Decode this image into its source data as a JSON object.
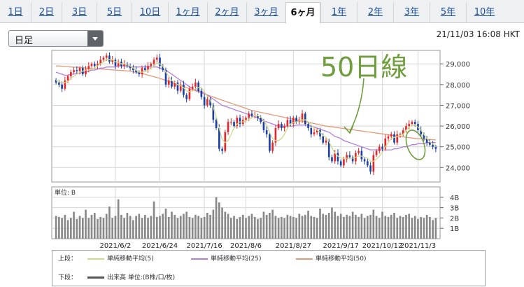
{
  "tabs": [
    {
      "label": "1日",
      "active": false
    },
    {
      "label": "2日",
      "active": false
    },
    {
      "label": "3日",
      "active": false
    },
    {
      "label": "5日",
      "active": false
    },
    {
      "label": "10日",
      "active": false
    },
    {
      "label": "1ヶ月",
      "active": false
    },
    {
      "label": "2ヶ月",
      "active": false
    },
    {
      "label": "3ヶ月",
      "active": false
    },
    {
      "label": "6ヶ月",
      "active": true
    },
    {
      "label": "1年",
      "active": false
    },
    {
      "label": "2年",
      "active": false
    },
    {
      "label": "3年",
      "active": false
    },
    {
      "label": "5年",
      "active": false
    },
    {
      "label": "10年",
      "active": false
    }
  ],
  "period_select": {
    "value": "日足"
  },
  "timestamp": "21/11/03 16:08 HKT",
  "annotation": {
    "text": "50日線",
    "color": "#6f9e3c"
  },
  "colors": {
    "up": "#e8242b",
    "down": "#1b3fa7",
    "ma5": "#cfd98a",
    "ma25": "#b37de0",
    "ma50": "#e29a78",
    "volume": "#888888",
    "grid": "#d6d6d6"
  },
  "legend": {
    "upper_label": "上段：",
    "lower_label": "下段：",
    "ma5_label": "単純移動平均(5)",
    "ma25_label": "単純移動平均(25)",
    "ma50_label": "単純移動平均(50)",
    "volume_label": "出来高 単位:(B株/口/枚)"
  },
  "chart_data": [
    {
      "type": "candlestick",
      "ylim": [
        23300,
        29650
      ],
      "yticks": [
        24000,
        25000,
        26000,
        27000,
        28000,
        29000
      ],
      "ytick_labels": [
        "24,000",
        "25,000",
        "26,000",
        "27,000",
        "28,000",
        "29,000"
      ],
      "xtick_labels": [
        "2021/6/2",
        "2021/6/24",
        "2021/7/16",
        "2021/8/6",
        "2021/8/27",
        "2021/9/17",
        "2021/10/12",
        "2021/11/3"
      ],
      "xtick_index": [
        20,
        35,
        50,
        64,
        80,
        96,
        110,
        122
      ],
      "close": [
        28100,
        28000,
        27800,
        28200,
        28400,
        28600,
        28700,
        28650,
        28800,
        28500,
        28750,
        28900,
        29000,
        28900,
        29000,
        29200,
        29300,
        29400,
        29100,
        29200,
        28900,
        29100,
        28900,
        29000,
        28900,
        28800,
        28700,
        28600,
        28500,
        28800,
        28700,
        28900,
        29000,
        29200,
        29300,
        28900,
        28700,
        28000,
        28200,
        27900,
        28100,
        27700,
        28000,
        27500,
        27300,
        27800,
        27900,
        28100,
        27700,
        27400,
        27000,
        27300,
        27000,
        26300,
        25900,
        24900,
        24800,
        25700,
        26200,
        26200,
        26000,
        26400,
        26100,
        26300,
        26400,
        26600,
        26500,
        26500,
        26400,
        26200,
        25800,
        25600,
        24800,
        25200,
        25900,
        26100,
        25900,
        26000,
        26300,
        26100,
        26400,
        26200,
        26300,
        26600,
        26100,
        25900,
        25600,
        25700,
        25800,
        25500,
        25200,
        25300,
        24500,
        24300,
        24700,
        24300,
        24100,
        24400,
        24600,
        24500,
        24300,
        24700,
        24800,
        24400,
        24300,
        24100,
        23800,
        24600,
        24800,
        25000,
        24900,
        25400,
        25500,
        25600,
        25200,
        25600,
        25600,
        25800,
        26000,
        26100,
        26200,
        26100,
        25800,
        25600,
        25400,
        25200,
        25100,
        25000,
        24900
      ],
      "ma5": [
        28200,
        28150,
        28100,
        28100,
        28150,
        28300,
        28400,
        28500,
        28600,
        28650,
        28700,
        28700,
        28750,
        28800,
        28900,
        29000,
        29100,
        29200,
        29200,
        29200,
        29100,
        29050,
        29000,
        29000,
        28950,
        28900,
        28800,
        28700,
        28600,
        28600,
        28650,
        28700,
        28800,
        28900,
        29050,
        29000,
        28900,
        28600,
        28400,
        28200,
        28100,
        28000,
        27950,
        27850,
        27700,
        27650,
        27700,
        27800,
        27850,
        27850,
        27650,
        27450,
        27250,
        26900,
        26450,
        25900,
        25350,
        25200,
        25300,
        25600,
        25900,
        26100,
        26200,
        26200,
        26250,
        26300,
        26400,
        26500,
        26500,
        26450,
        26250,
        26050,
        25700,
        25400,
        25300,
        25300,
        25400,
        25600,
        25900,
        26100,
        26150,
        26200,
        26250,
        26300,
        26300,
        26200,
        26050,
        25900,
        25800,
        25700,
        25550,
        25450,
        25250,
        24950,
        24700,
        24550,
        24450,
        24450,
        24450,
        24450,
        24450,
        24500,
        24550,
        24550,
        24500,
        24450,
        24300,
        24300,
        24400,
        24550,
        24750,
        25000,
        25200,
        25400,
        25450,
        25500,
        25550,
        25600,
        25800,
        25950,
        26050,
        26050,
        25950,
        25800,
        25600,
        25400,
        25250,
        25150,
        25000
      ],
      "ma25": [
        28600,
        28550,
        28500,
        28450,
        28450,
        28500,
        28500,
        28550,
        28550,
        28600,
        28600,
        28650,
        28700,
        28700,
        28750,
        28800,
        28800,
        28850,
        28850,
        28850,
        28850,
        28900,
        28900,
        28900,
        28900,
        28850,
        28850,
        28850,
        28850,
        28850,
        28850,
        28850,
        28850,
        28850,
        28850,
        28800,
        28750,
        28700,
        28600,
        28500,
        28400,
        28300,
        28200,
        28100,
        28000,
        27900,
        27800,
        27750,
        27700,
        27650,
        27600,
        27500,
        27400,
        27300,
        27200,
        27100,
        27000,
        26950,
        26900,
        26850,
        26800,
        26750,
        26700,
        26650,
        26600,
        26550,
        26500,
        26450,
        26400,
        26300,
        26250,
        26200,
        26150,
        26100,
        26050,
        26000,
        26000,
        26000,
        26000,
        26000,
        26000,
        26050,
        26050,
        26050,
        26050,
        26050,
        26000,
        25950,
        25900,
        25850,
        25800,
        25750,
        25700,
        25600,
        25500,
        25450,
        25400,
        25300,
        25250,
        25200,
        25150,
        25100,
        25050,
        25000,
        24950,
        24900,
        24850,
        24850,
        24850,
        24850,
        24850,
        24850,
        24850,
        24850,
        24900,
        24900,
        24950,
        25000,
        25000,
        25050,
        25100,
        25100,
        25150,
        25150,
        25150,
        25200,
        25200,
        25200,
        25200
      ],
      "ma50": [
        28900,
        28900,
        28880,
        28870,
        28860,
        28850,
        28840,
        28840,
        28830,
        28820,
        28800,
        28790,
        28780,
        28770,
        28760,
        28750,
        28740,
        28730,
        28720,
        28710,
        28700,
        28690,
        28680,
        28670,
        28660,
        28650,
        28620,
        28590,
        28560,
        28530,
        28500,
        28460,
        28420,
        28380,
        28340,
        28300,
        28250,
        28200,
        28150,
        28100,
        28050,
        28000,
        27950,
        27900,
        27850,
        27800,
        27750,
        27700,
        27650,
        27600,
        27550,
        27500,
        27450,
        27400,
        27350,
        27300,
        27250,
        27200,
        27150,
        27100,
        27050,
        27000,
        26950,
        26900,
        26850,
        26800,
        26750,
        26720,
        26690,
        26660,
        26630,
        26600,
        26570,
        26540,
        26510,
        26480,
        26450,
        26420,
        26390,
        26360,
        26330,
        26300,
        26270,
        26240,
        26210,
        26180,
        26150,
        26120,
        26090,
        26060,
        26030,
        26000,
        25980,
        25960,
        25940,
        25920,
        25900,
        25880,
        25860,
        25840,
        25820,
        25800,
        25780,
        25760,
        25740,
        25720,
        25700,
        25680,
        25660,
        25640,
        25620,
        25600,
        25580,
        25560,
        25540,
        25520,
        25500,
        25480,
        25460,
        25440,
        25420,
        25400,
        25390,
        25380,
        25370,
        25360,
        25350,
        25340,
        25330
      ]
    },
    {
      "type": "bar",
      "title": "単位: B",
      "ylim": [
        0,
        5
      ],
      "yticks": [
        1,
        2,
        3,
        4
      ],
      "ytick_labels": [
        "1B",
        "2B",
        "3B",
        "4B"
      ],
      "values": [
        2.2,
        2.1,
        2.0,
        2.3,
        1.8,
        2.0,
        2.6,
        1.9,
        2.2,
        2.0,
        2.8,
        2.0,
        2.3,
        2.5,
        1.9,
        2.1,
        2.0,
        2.4,
        3.1,
        2.0,
        2.2,
        3.8,
        2.3,
        2.0,
        2.5,
        2.2,
        1.8,
        2.2,
        2.4,
        2.0,
        2.3,
        2.0,
        2.2,
        3.6,
        2.1,
        2.2,
        2.4,
        2.9,
        2.1,
        2.6,
        2.3,
        2.0,
        2.2,
        2.4,
        2.6,
        2.1,
        2.0,
        2.3,
        2.2,
        2.0,
        2.1,
        2.5,
        2.3,
        2.8,
        4.0,
        3.5,
        3.0,
        2.6,
        2.4,
        2.0,
        2.2,
        1.9,
        2.1,
        2.3,
        2.0,
        2.2,
        2.4,
        2.1,
        1.9,
        2.0,
        2.6,
        2.3,
        2.5,
        2.8,
        2.2,
        2.0,
        2.1,
        2.0,
        2.3,
        2.2,
        2.1,
        2.0,
        2.4,
        2.2,
        2.3,
        2.7,
        2.2,
        2.1,
        2.0,
        2.9,
        2.4,
        2.3,
        2.5,
        3.0,
        2.6,
        2.2,
        2.4,
        2.1,
        2.3,
        2.2,
        2.6,
        2.3,
        2.1,
        2.4,
        2.0,
        2.2,
        2.3,
        2.8,
        2.2,
        2.0,
        2.6,
        2.2,
        2.1,
        2.3,
        2.5,
        2.0,
        2.2,
        2.1,
        2.3,
        2.4,
        2.0,
        2.2,
        1.9,
        2.1,
        2.0,
        2.3,
        2.1,
        1.8,
        2.0
      ]
    }
  ]
}
